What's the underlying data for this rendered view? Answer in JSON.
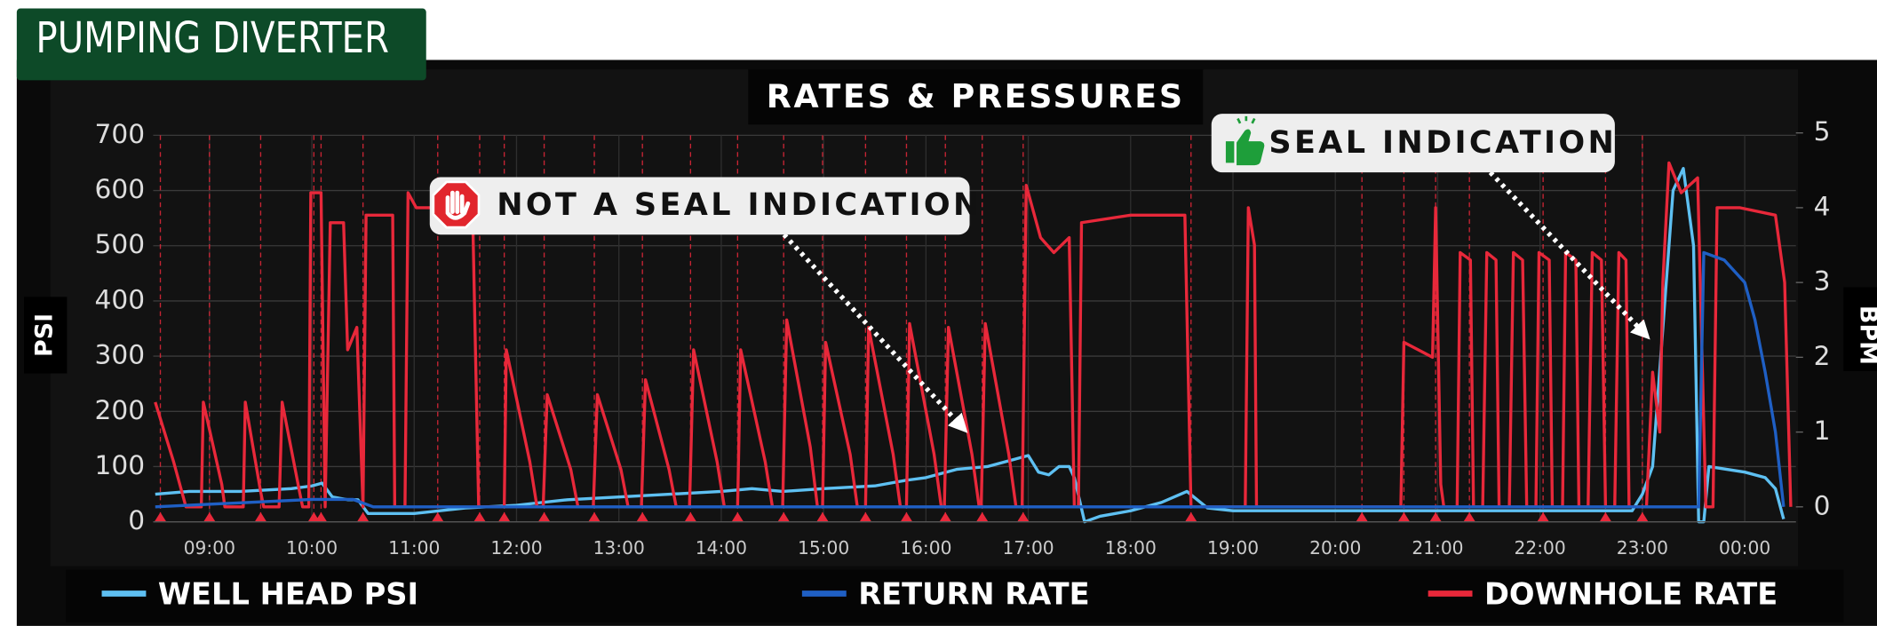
{
  "header": {
    "title": "PUMPING DIVERTER"
  },
  "chart_data": {
    "type": "line",
    "title": "RATES & PRESSURES",
    "y_label": "PSI",
    "y2_label": "BPM",
    "xlim": [
      8.45,
      24.5
    ],
    "xticks": [
      {
        "value": 9,
        "label": "09:00"
      },
      {
        "value": 10,
        "label": "10:00"
      },
      {
        "value": 11,
        "label": "11:00"
      },
      {
        "value": 12,
        "label": "12:00"
      },
      {
        "value": 13,
        "label": "13:00"
      },
      {
        "value": 14,
        "label": "14:00"
      },
      {
        "value": 15,
        "label": "15:00"
      },
      {
        "value": 16,
        "label": "16:00"
      },
      {
        "value": 17,
        "label": "17:00"
      },
      {
        "value": 18,
        "label": "18:00"
      },
      {
        "value": 19,
        "label": "19:00"
      },
      {
        "value": 20,
        "label": "20:00"
      },
      {
        "value": 21,
        "label": "21:00"
      },
      {
        "value": 22,
        "label": "22:00"
      },
      {
        "value": 23,
        "label": "23:00"
      },
      {
        "value": 24,
        "label": "00:00"
      }
    ],
    "ylim": [
      0,
      700
    ],
    "yticks": [
      0,
      100,
      200,
      300,
      400,
      500,
      600,
      700
    ],
    "y2lim": [
      -0.2,
      5
    ],
    "y2ticks": [
      0,
      1,
      2,
      3,
      4,
      5
    ],
    "grid": true,
    "event_markers": [
      8.52,
      9.0,
      9.5,
      10.02,
      10.09,
      10.5,
      11.23,
      11.64,
      11.88,
      12.27,
      12.76,
      13.23,
      13.7,
      14.16,
      14.61,
      14.99,
      15.41,
      15.81,
      16.19,
      16.55,
      16.95,
      18.59,
      20.26,
      20.67,
      20.98,
      21.31,
      22.03,
      22.64,
      23.0
    ],
    "marker_color": "#e8283a",
    "series": [
      {
        "name": "WELL HEAD PSI",
        "color": "#5ec0f2",
        "axis": "y",
        "x": [
          8.47,
          8.8,
          9.3,
          9.8,
          10.0,
          10.1,
          10.2,
          10.35,
          10.45,
          10.55,
          11.0,
          11.5,
          12.0,
          12.5,
          13.0,
          13.5,
          14.0,
          14.3,
          14.6,
          15.0,
          15.5,
          15.8,
          16.0,
          16.3,
          16.6,
          16.8,
          17.0,
          17.1,
          17.2,
          17.3,
          17.4,
          17.45,
          17.55,
          17.7,
          18.0,
          18.3,
          18.55,
          18.75,
          19.0,
          19.5,
          20.0,
          20.5,
          21.0,
          21.5,
          22.0,
          22.5,
          22.9,
          23.0,
          23.1,
          23.2,
          23.3,
          23.4,
          23.5,
          23.55,
          23.6,
          23.65,
          24.0,
          24.2,
          24.3,
          24.38
        ],
        "values": [
          50,
          55,
          55,
          60,
          65,
          70,
          45,
          40,
          40,
          15,
          15,
          25,
          30,
          40,
          45,
          50,
          55,
          60,
          55,
          60,
          65,
          75,
          80,
          95,
          100,
          110,
          120,
          90,
          85,
          100,
          100,
          80,
          0,
          10,
          20,
          35,
          55,
          25,
          20,
          20,
          20,
          20,
          20,
          20,
          20,
          20,
          20,
          50,
          100,
          350,
          600,
          640,
          500,
          0,
          0,
          100,
          90,
          80,
          60,
          5
        ]
      },
      {
        "name": "RETURN RATE",
        "color": "#1f5fc4",
        "axis": "y2",
        "x": [
          8.47,
          10.0,
          10.4,
          10.6,
          23.55,
          23.6,
          23.8,
          24.0,
          24.1,
          24.2,
          24.3,
          24.38
        ],
        "values": [
          0,
          0.1,
          0.1,
          0,
          0,
          3.4,
          3.3,
          3.0,
          2.5,
          1.8,
          1.0,
          0
        ]
      },
      {
        "name": "DOWNHOLE RATE",
        "color": "#e8283a",
        "axis": "y2",
        "x": [
          8.47,
          8.65,
          8.77,
          8.92,
          8.94,
          9.12,
          9.15,
          9.33,
          9.35,
          9.5,
          9.53,
          9.68,
          9.71,
          9.88,
          9.91,
          9.97,
          9.99,
          10.09,
          10.13,
          10.18,
          10.31,
          10.35,
          10.44,
          10.5,
          10.53,
          10.79,
          10.81,
          10.91,
          10.94,
          11.02,
          11.57,
          11.63,
          11.88,
          11.9,
          12.13,
          12.2,
          12.26,
          12.3,
          12.53,
          12.6,
          12.75,
          12.79,
          13.02,
          13.09,
          13.22,
          13.26,
          13.49,
          13.56,
          13.69,
          13.73,
          13.96,
          14.03,
          14.16,
          14.19,
          14.43,
          14.5,
          14.6,
          14.64,
          14.87,
          14.94,
          14.99,
          15.02,
          15.26,
          15.33,
          15.41,
          15.44,
          15.68,
          15.75,
          15.81,
          15.84,
          16.08,
          16.15,
          16.18,
          16.22,
          16.45,
          16.52,
          16.54,
          16.58,
          16.81,
          16.88,
          16.94,
          16.98,
          17.12,
          17.25,
          17.4,
          17.45,
          17.49,
          17.52,
          18.0,
          18.53,
          18.59,
          19.12,
          19.15,
          19.21,
          19.23,
          20.64,
          20.67,
          20.95,
          20.98,
          21.03,
          21.06,
          21.19,
          21.22,
          21.32,
          21.35,
          21.44,
          21.48,
          21.57,
          21.6,
          21.7,
          21.74,
          21.83,
          21.87,
          21.96,
          21.99,
          22.09,
          22.12,
          22.22,
          22.25,
          22.35,
          22.38,
          22.47,
          22.51,
          22.6,
          22.64,
          22.73,
          22.77,
          22.84,
          22.87,
          23.04,
          23.1,
          23.17,
          23.2,
          23.26,
          23.38,
          23.54,
          23.62,
          23.69,
          23.73,
          23.95,
          24.3,
          24.39,
          24.45
        ],
        "values": [
          1.4,
          0.6,
          0,
          0,
          1.4,
          0.3,
          0,
          0,
          1.4,
          0.2,
          0,
          0,
          1.4,
          0.2,
          0,
          0,
          4.2,
          4.2,
          0,
          3.8,
          3.8,
          2.1,
          2.4,
          0,
          3.9,
          3.9,
          0,
          0,
          4.2,
          4.0,
          4.0,
          0,
          0,
          2.1,
          0.6,
          0,
          0,
          1.5,
          0.5,
          0,
          0,
          1.5,
          0.5,
          0,
          0,
          1.7,
          0.5,
          0,
          0,
          2.1,
          0.6,
          0,
          0,
          2.1,
          0.6,
          0,
          0,
          2.5,
          0.8,
          0,
          0,
          2.2,
          0.7,
          0,
          0,
          2.4,
          0.7,
          0,
          0,
          2.45,
          0.7,
          0,
          0,
          2.4,
          0.7,
          0,
          0,
          2.45,
          0.7,
          0,
          0,
          4.3,
          3.6,
          3.4,
          3.6,
          0,
          0,
          3.8,
          3.9,
          3.9,
          0,
          0,
          4.0,
          3.5,
          0,
          0,
          2.2,
          2.0,
          4.0,
          0.3,
          0,
          0,
          3.4,
          3.3,
          0,
          0,
          3.4,
          3.3,
          0,
          0,
          3.4,
          3.3,
          0,
          0,
          3.4,
          3.3,
          0,
          0,
          3.4,
          3.3,
          0,
          0,
          3.4,
          3.3,
          0,
          0,
          3.4,
          3.3,
          0,
          0,
          1.8,
          1.0,
          3.0,
          4.6,
          4.2,
          4.4,
          0,
          0,
          4.0,
          4.0,
          3.9,
          3.0,
          0
        ]
      }
    ],
    "annotations": [
      {
        "text": "NOT A SEAL INDICATION"
      },
      {
        "text": "SEAL INDICATION"
      }
    ]
  }
}
